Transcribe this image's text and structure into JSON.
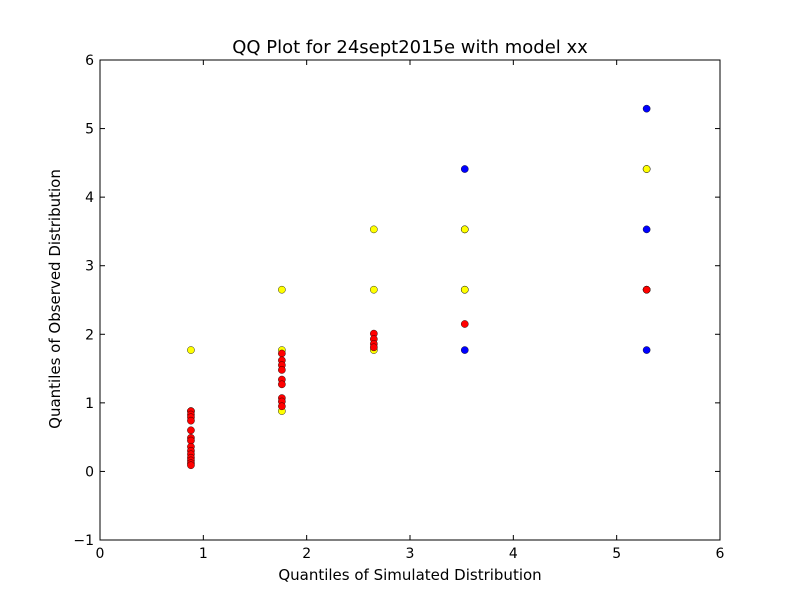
{
  "chart_data": {
    "type": "scatter",
    "title": "QQ Plot for 24sept2015e with model xx",
    "xlabel": "Quantiles of Simulated Distribution",
    "ylabel": "Quantiles of Observed Distribution",
    "xlim": [
      0,
      6
    ],
    "ylim": [
      -1,
      6
    ],
    "x_ticks": [
      0,
      1,
      2,
      3,
      4,
      5,
      6
    ],
    "y_ticks": [
      -1,
      0,
      1,
      2,
      3,
      4,
      5,
      6
    ],
    "x_tick_labels": [
      "0",
      "1",
      "2",
      "3",
      "4",
      "5",
      "6"
    ],
    "y_tick_labels": [
      "−1",
      "0",
      "1",
      "2",
      "3",
      "4",
      "5",
      "6"
    ],
    "grid": false,
    "legend": "none",
    "series": [
      {
        "color": "#0000ff",
        "points": [
          [
            3.53,
            4.41
          ],
          [
            3.53,
            3.53
          ],
          [
            3.53,
            2.65
          ],
          [
            3.53,
            1.77
          ],
          [
            5.29,
            5.29
          ],
          [
            5.29,
            4.41
          ],
          [
            5.29,
            3.53
          ],
          [
            5.29,
            2.65
          ],
          [
            5.29,
            1.77
          ]
        ]
      },
      {
        "color": "#ffff00",
        "points": [
          [
            0.88,
            1.77
          ],
          [
            0.88,
            0.88
          ],
          [
            1.76,
            2.65
          ],
          [
            1.76,
            1.77
          ],
          [
            1.76,
            0.88
          ],
          [
            2.65,
            3.53
          ],
          [
            2.65,
            2.65
          ],
          [
            2.65,
            1.77
          ],
          [
            3.53,
            3.53
          ],
          [
            3.53,
            2.65
          ],
          [
            5.29,
            4.41
          ],
          [
            5.29,
            2.65
          ]
        ]
      },
      {
        "color": "#ff0000",
        "points": [
          [
            0.88,
            0.88
          ],
          [
            0.88,
            0.83
          ],
          [
            0.88,
            0.79
          ],
          [
            0.88,
            0.74
          ],
          [
            0.88,
            0.6
          ],
          [
            0.88,
            0.49
          ],
          [
            0.88,
            0.45
          ],
          [
            0.88,
            0.36
          ],
          [
            0.88,
            0.3
          ],
          [
            0.88,
            0.25
          ],
          [
            0.88,
            0.2
          ],
          [
            0.88,
            0.16
          ],
          [
            0.88,
            0.12
          ],
          [
            0.88,
            0.09
          ],
          [
            1.76,
            1.72
          ],
          [
            1.76,
            1.62
          ],
          [
            1.76,
            1.55
          ],
          [
            1.76,
            1.48
          ],
          [
            1.76,
            1.34
          ],
          [
            1.76,
            1.27
          ],
          [
            1.76,
            1.07
          ],
          [
            1.76,
            1.02
          ],
          [
            1.76,
            0.95
          ],
          [
            2.65,
            2.01
          ],
          [
            2.65,
            1.93
          ],
          [
            2.65,
            1.86
          ],
          [
            2.65,
            1.81
          ],
          [
            3.53,
            2.15
          ],
          [
            5.29,
            2.65
          ]
        ]
      }
    ]
  }
}
